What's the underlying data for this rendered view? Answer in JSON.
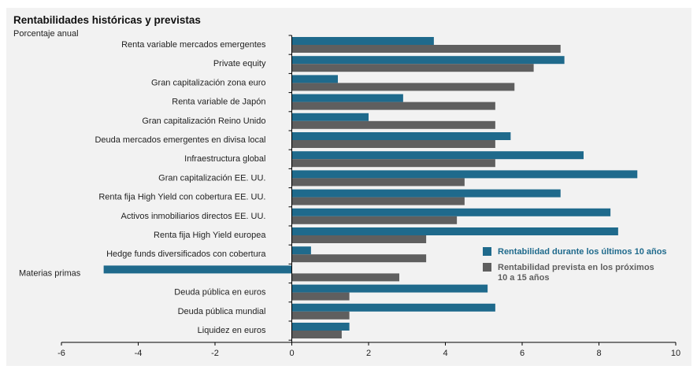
{
  "chart_data": {
    "type": "bar",
    "orientation": "horizontal",
    "title": "Rentabilidades históricas y previstas",
    "subtitle": "Porcentaje anual",
    "categories": [
      "Renta variable mercados emergentes",
      "Private equity",
      "Gran capitalización zona euro",
      "Renta variable de Japón",
      "Gran capitalización Reino Unido",
      "Deuda mercados emergentes en divisa local",
      "Infraestructura global",
      "Gran capitalización EE. UU.",
      "Renta fija High Yield con cobertura EE. UU.",
      "Activos inmobiliarios directos EE. UU.",
      "Renta fija High Yield europea",
      "Hedge funds diversificados con cobertura",
      "Materias primas",
      "Deuda pública en euros",
      "Deuda pública mundial",
      "Liquidez en euros"
    ],
    "series": [
      {
        "name": "Rentabilidad durante los últimos 10 años",
        "color": "#1f6a8c",
        "values": [
          3.7,
          7.1,
          1.2,
          2.9,
          2.0,
          5.7,
          7.6,
          9.0,
          7.0,
          8.3,
          8.5,
          0.5,
          -4.9,
          5.1,
          5.3,
          1.5
        ]
      },
      {
        "name": "Rentabilidad prevista en los próximos 10 a 15 años",
        "color": "#5f5f5f",
        "values": [
          7.0,
          6.3,
          5.8,
          5.3,
          5.3,
          5.3,
          5.3,
          4.5,
          4.5,
          4.3,
          3.5,
          3.5,
          2.8,
          1.5,
          1.5,
          1.3
        ]
      }
    ],
    "xlim": [
      -6,
      10
    ],
    "xticks": [
      "-6",
      "-4",
      "-2",
      "0",
      "2",
      "4",
      "6",
      "8",
      "10"
    ],
    "grid": false,
    "legend_position": "right",
    "legend_lines": [
      [
        "Rentabilidad durante los últimos 10 años"
      ],
      [
        "Rentabilidad prevista en los próximos",
        "10 a 15 años"
      ]
    ]
  }
}
